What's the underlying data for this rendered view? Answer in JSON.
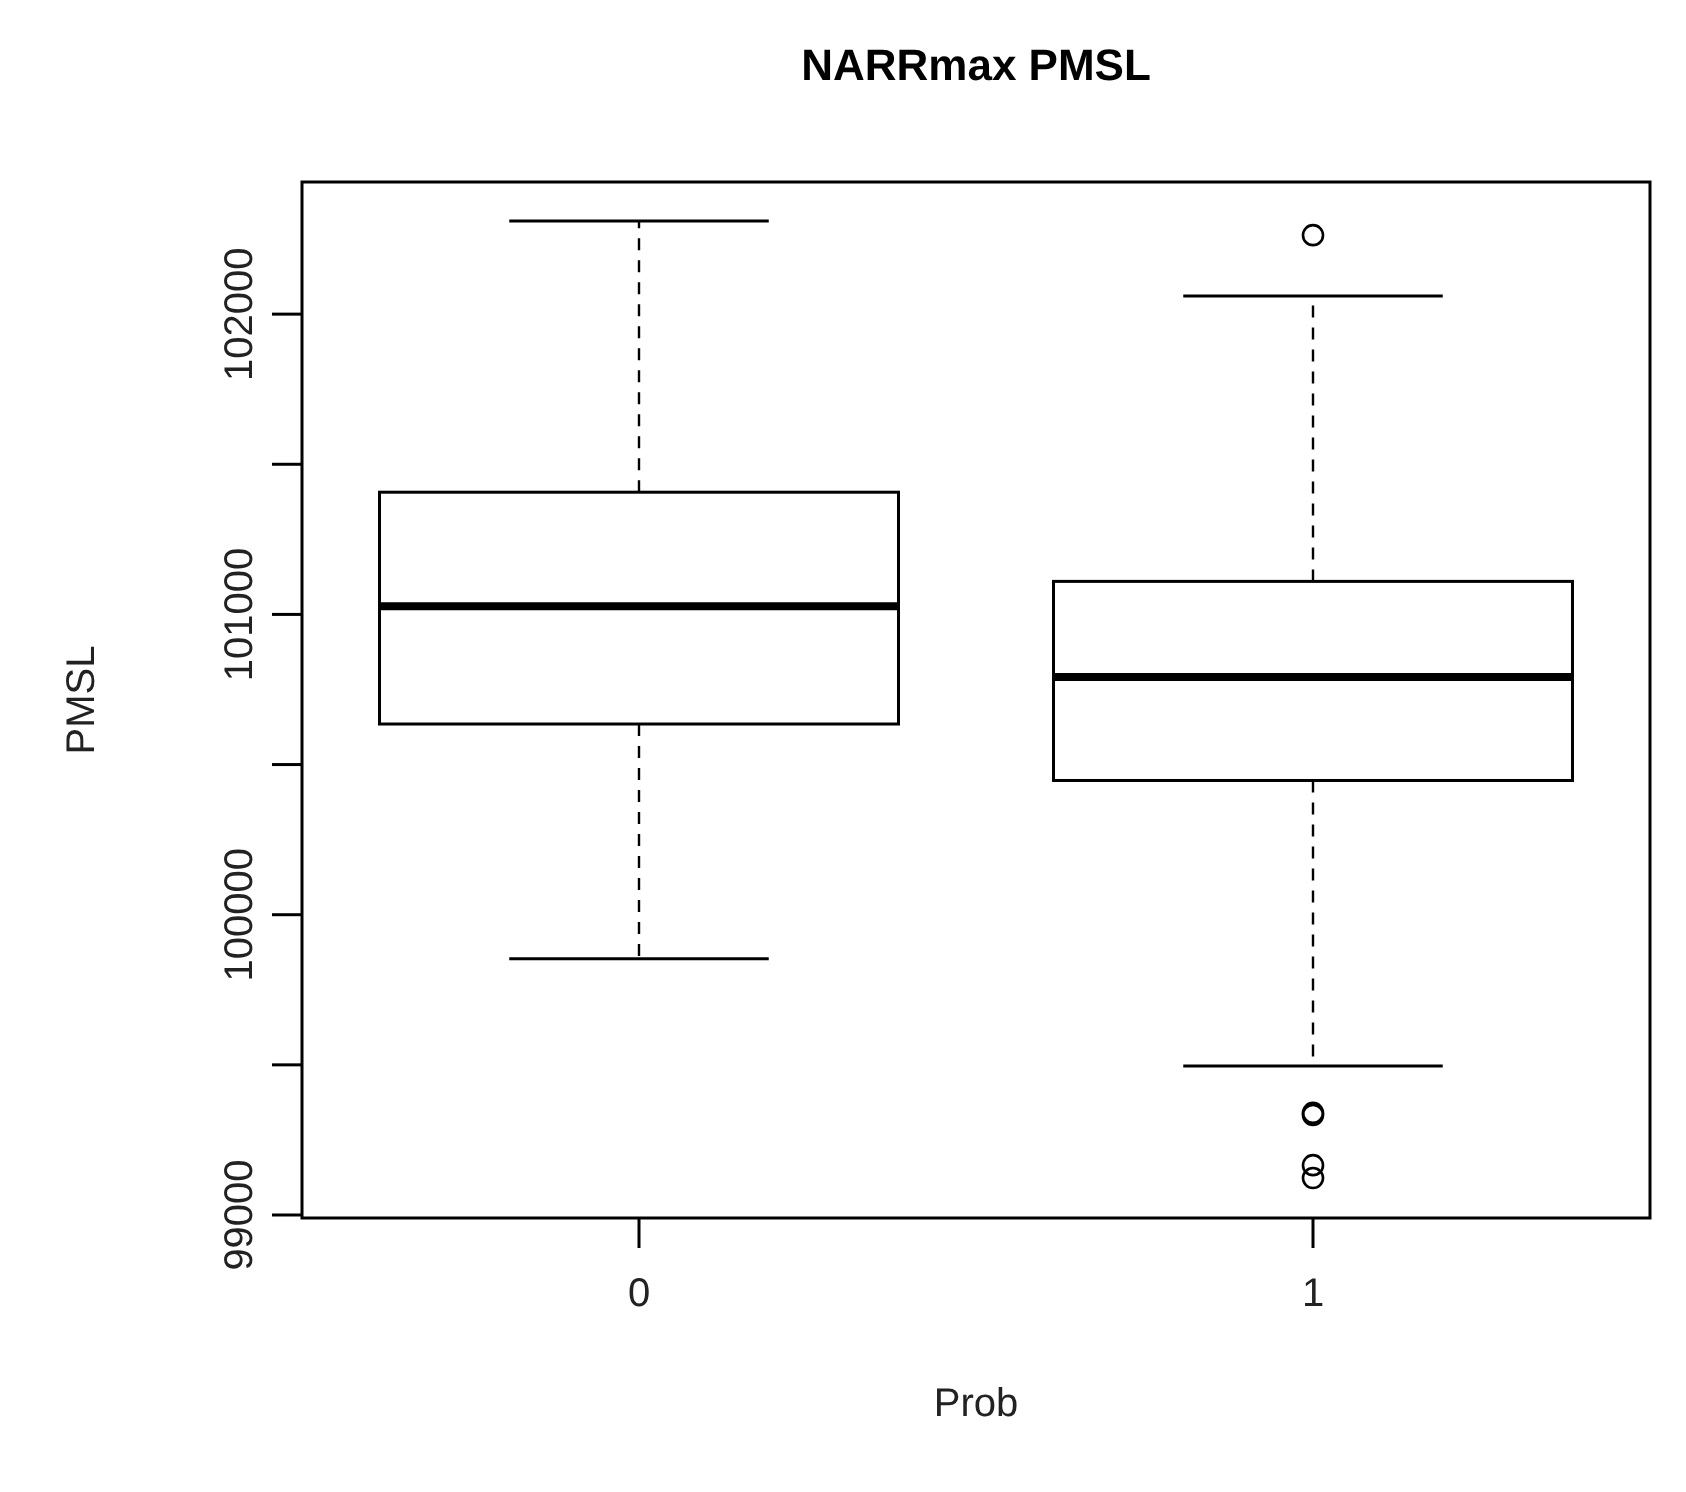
{
  "chart_data": {
    "type": "box",
    "title": "NARRmax PMSL",
    "xlabel": "Prob",
    "ylabel": "PMSL",
    "categories": [
      "0",
      "1"
    ],
    "boxes": [
      {
        "low": 99853,
        "q1": 100635,
        "median": 101027,
        "q3": 101407,
        "high": 102310
      },
      {
        "low": 99496,
        "q1": 100447,
        "median": 100792,
        "q3": 101110,
        "high": 102060,
        "outliers": [
          102263,
          99340,
          99333,
          99166,
          99123
        ]
      }
    ],
    "ylim": [
      98990,
      102440
    ],
    "yticks": [
      99000,
      {
        "value": 99500,
        "label": null
      },
      100000,
      {
        "value": 100500,
        "label": null
      },
      101000,
      {
        "value": 101500,
        "label": null
      },
      102000
    ]
  }
}
